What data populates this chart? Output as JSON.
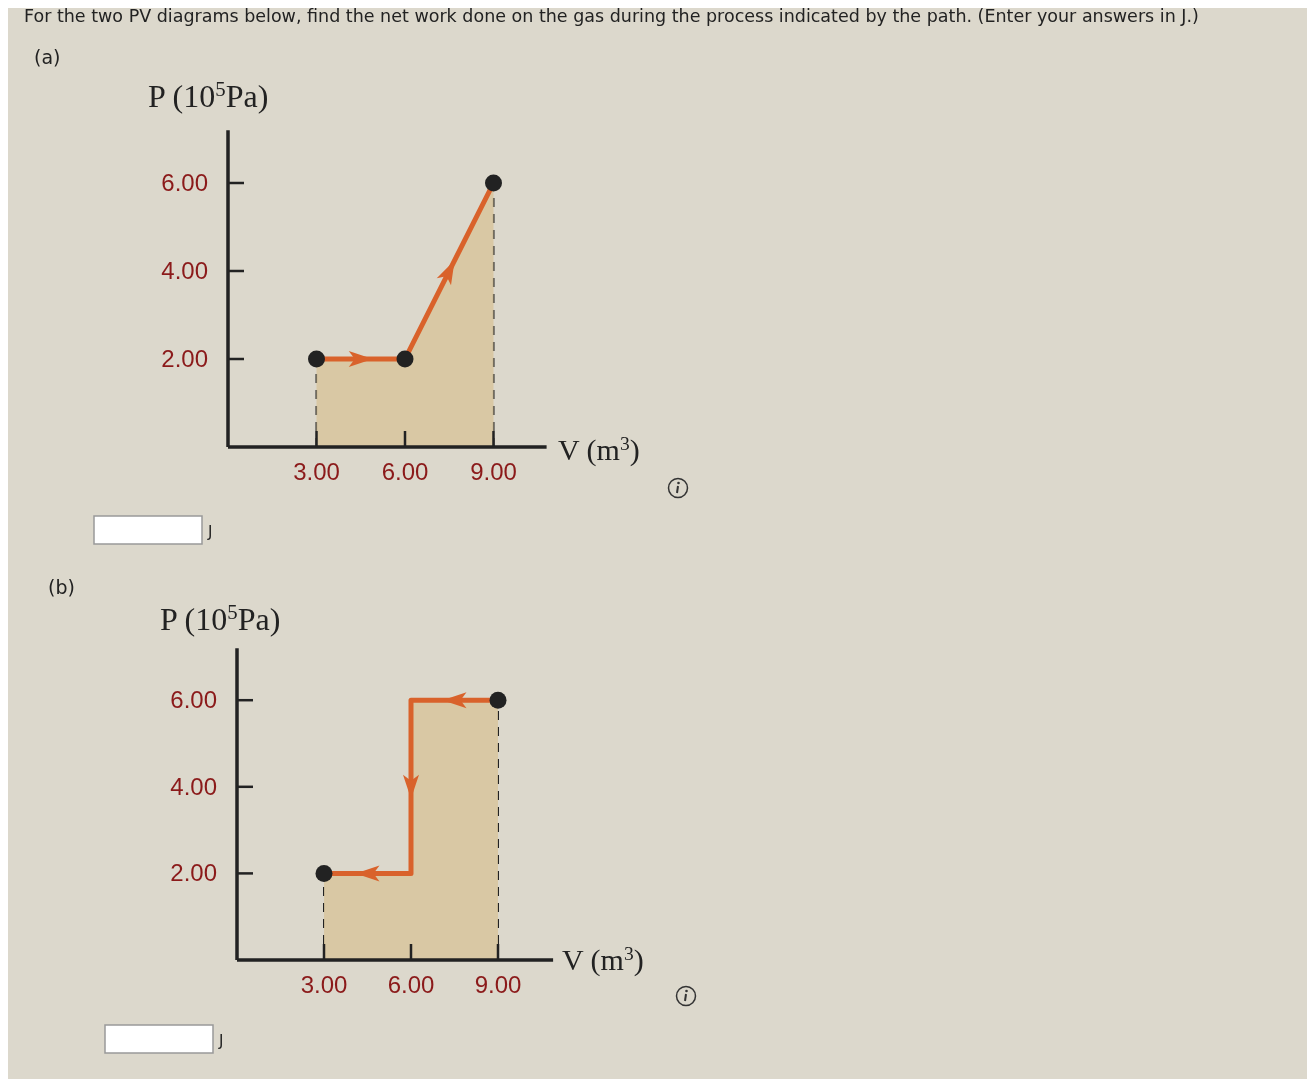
{
  "chart_data": [
    {
      "type": "area",
      "title": "(a)",
      "annotations": [
        "For the two PV diagrams below, find the net work done on the gas during the process indicated by the path. (Enter your answers in J.)",
        "J"
      ],
      "xlabel": "V (m$^{3}$)",
      "ylabel": "P (10$^{5}$Pa)",
      "xlim": [
        0,
        10.8
      ],
      "ylim": [
        0,
        7.2
      ],
      "xticks": [
        {
          "value": 3,
          "label": "3.00"
        },
        {
          "value": 6,
          "label": "6.00"
        },
        {
          "value": 9,
          "label": "9.00"
        }
      ],
      "yticks": [
        {
          "value": 2,
          "label": "2.00"
        },
        {
          "value": 4,
          "label": "4.00"
        },
        {
          "value": 6,
          "label": "6.00"
        }
      ],
      "series": [
        {
          "color": "#d9622b",
          "x": [
            3,
            6,
            9
          ],
          "values": [
            2,
            2,
            6
          ],
          "marker": "none"
        },
        {
          "type": "scatter",
          "color": "#222222",
          "x": [
            3,
            6,
            9
          ],
          "values": [
            2,
            2,
            6
          ],
          "marker": "circle"
        }
      ],
      "ref_lines": [
        {
          "axis": "x",
          "value": 3,
          "line_style": "dashed"
        },
        {
          "axis": "x",
          "value": 9,
          "line_style": "dashed"
        }
      ]
    },
    {
      "type": "area",
      "title": "(b)",
      "annotations": [
        "J"
      ],
      "xlabel": "V (m$^{3}$)",
      "ylabel": "P (10$^{5}$Pa)",
      "xlim": [
        0,
        10.9
      ],
      "ylim": [
        0,
        7.2
      ],
      "xticks": [
        {
          "value": 3,
          "label": "3.00"
        },
        {
          "value": 6,
          "label": "6.00"
        },
        {
          "value": 9,
          "label": "9.00"
        }
      ],
      "yticks": [
        {
          "value": 2,
          "label": "2.00"
        },
        {
          "value": 4,
          "label": "4.00"
        },
        {
          "value": 6,
          "label": "6.00"
        }
      ],
      "series": [
        {
          "color": "#d9622b",
          "x": [
            9,
            6,
            6,
            3
          ],
          "values": [
            6,
            6,
            2,
            2
          ],
          "marker": "none"
        },
        {
          "type": "scatter",
          "color": "#222222",
          "x": [
            9,
            3
          ],
          "values": [
            6,
            2
          ],
          "marker": "circle"
        }
      ],
      "ref_lines": [
        {
          "axis": "x",
          "value": 3,
          "line_style": "dashed"
        },
        {
          "axis": "x",
          "value": 9,
          "line_style": "dashed"
        }
      ]
    }
  ]
}
